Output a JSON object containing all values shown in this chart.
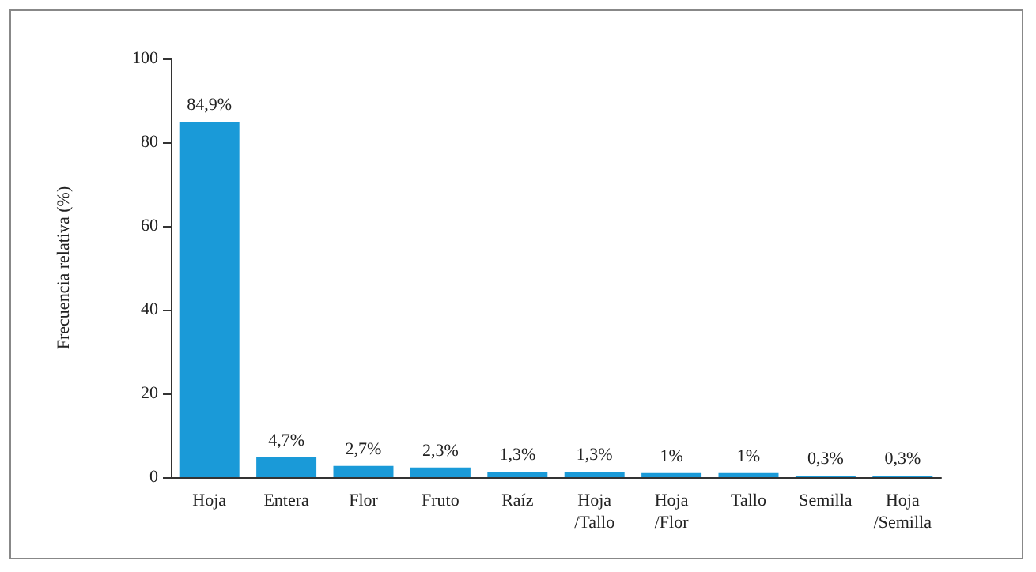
{
  "chart_data": {
    "type": "bar",
    "ylabel": "Frecuencia relativa (%)",
    "categories": [
      "Hoja",
      "Entera",
      "Flor",
      "Fruto",
      "Raíz",
      "Hoja\n/Tallo",
      "Hoja\n/Flor",
      "Tallo",
      "Semilla",
      "Hoja\n/Semilla"
    ],
    "values": [
      84.9,
      4.7,
      2.7,
      2.3,
      1.3,
      1.3,
      1,
      1,
      0.3,
      0.3
    ],
    "value_labels": [
      "84,9%",
      "4,7%",
      "2,7%",
      "2,3%",
      "1,3%",
      "1,3%",
      "1%",
      "1%",
      "0,3%",
      "0,3%"
    ],
    "color": "#1a9ad8",
    "ylim": [
      0,
      100
    ],
    "yticks": [
      0,
      20,
      40,
      60,
      80,
      100
    ],
    "grid": false
  }
}
